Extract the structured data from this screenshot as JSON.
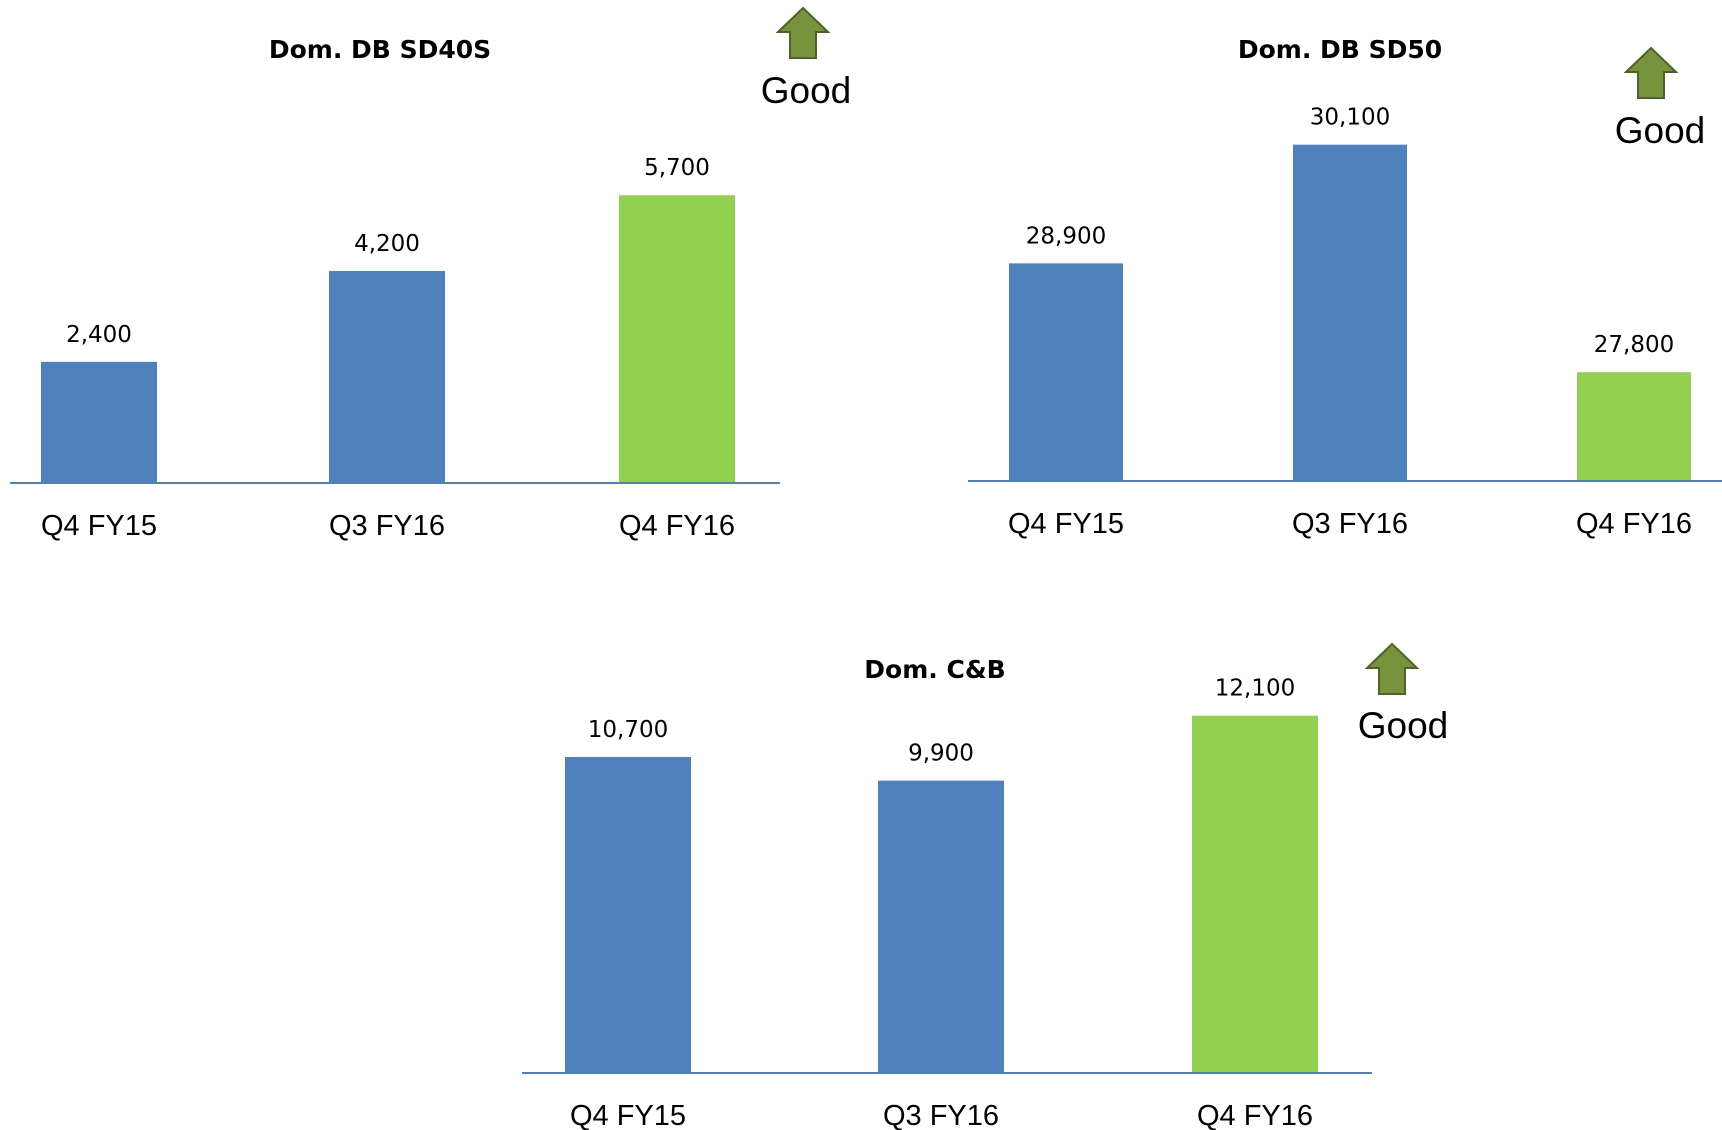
{
  "good_label": "Good",
  "good_arrow_icon": "up-arrow-icon",
  "colors": {
    "bar": "#4F81BD",
    "highlight": "#92D050",
    "axis": "#4F81BD",
    "arrow_fill": "#77933C",
    "arrow_stroke": "#4F6228"
  },
  "chart_data": [
    {
      "type": "bar",
      "title": "Dom. DB SD40S",
      "categories": [
        "Q4 FY15",
        "Q3 FY16",
        "Q4 FY16"
      ],
      "values": [
        2400,
        4200,
        5700
      ],
      "value_labels": [
        "2,400",
        "4,200",
        "5,700"
      ],
      "highlight_index": 2,
      "ylim": [
        0,
        6200
      ],
      "xlabel": "",
      "ylabel": "",
      "grid": false,
      "legend": "none"
    },
    {
      "type": "bar",
      "title": "Dom. DB SD50",
      "categories": [
        "Q4 FY15",
        "Q3 FY16",
        "Q4 FY16"
      ],
      "values": [
        28900,
        30100,
        27800
      ],
      "value_labels": [
        "28,900",
        "30,100",
        "27,800"
      ],
      "highlight_index": 2,
      "ylim": [
        26700,
        30400
      ],
      "xlabel": "",
      "ylabel": "",
      "grid": false,
      "legend": "none"
    },
    {
      "type": "bar",
      "title": "Dom. C&B",
      "categories": [
        "Q4 FY15",
        "Q3 FY16",
        "Q4 FY16"
      ],
      "values": [
        10700,
        9900,
        12100
      ],
      "value_labels": [
        "10,700",
        "9,900",
        "12,100"
      ],
      "highlight_index": 2,
      "ylim": [
        0,
        12800
      ],
      "xlabel": "",
      "ylabel": "",
      "grid": false,
      "legend": "none"
    }
  ]
}
